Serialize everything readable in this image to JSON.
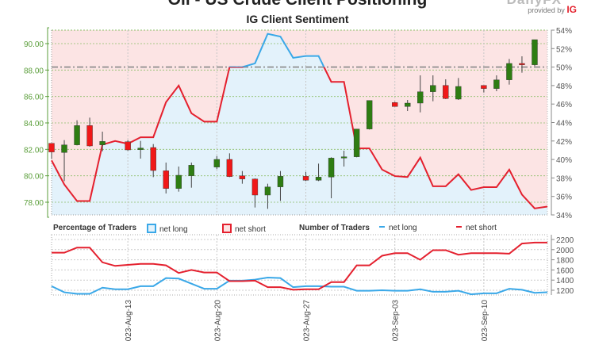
{
  "header": {
    "title": "Oil - US Crude Client Positioning",
    "subtitle": "IG Client Sentiment",
    "logo": "DailyFX",
    "provided_by": "provided by",
    "provider": "IG"
  },
  "legend": {
    "percentage_title": "Percentage of Traders",
    "pct_long": "net long",
    "pct_short": "net short",
    "number_title": "Number of Traders",
    "num_long": "net long",
    "num_short": "net short"
  },
  "colors": {
    "long": "#3aa8e8",
    "short": "#e4202e",
    "bull": "#2e7d12",
    "bear": "#f01818",
    "price_axis": "#5a9e3a",
    "bg_short": "#fce4e4",
    "bg_long": "#e3f2fb"
  },
  "chart_data": [
    {
      "type": "line",
      "title": "IG Client Sentiment",
      "dates": [
        "2023-08-07",
        "2023-08-08",
        "2023-08-09",
        "2023-08-10",
        "2023-08-11",
        "2023-08-12",
        "2023-08-13",
        "2023-08-14",
        "2023-08-15",
        "2023-08-16",
        "2023-08-17",
        "2023-08-18",
        "2023-08-19",
        "2023-08-20",
        "2023-08-21",
        "2023-08-22",
        "2023-08-23",
        "2023-08-24",
        "2023-08-25",
        "2023-08-26",
        "2023-08-27",
        "2023-08-28",
        "2023-08-29",
        "2023-08-30",
        "2023-08-31",
        "2023-09-01",
        "2023-09-02",
        "2023-09-03",
        "2023-09-04",
        "2023-09-05",
        "2023-09-06",
        "2023-09-07",
        "2023-09-08",
        "2023-09-09",
        "2023-09-10",
        "2023-09-11",
        "2023-09-12",
        "2023-09-13",
        "2023-09-14",
        "2023-09-15"
      ],
      "net_long_pct": [
        39.9,
        37.3,
        35.5,
        35.5,
        41.6,
        42.0,
        41.7,
        42.4,
        42.4,
        46.2,
        48.0,
        45.0,
        44.1,
        44.1,
        50.0,
        50.0,
        50.4,
        53.6,
        53.3,
        51.0,
        51.2,
        51.2,
        48.4,
        48.4,
        41.2,
        41.2,
        38.9,
        38.2,
        38.1,
        40.2,
        37.1,
        37.1,
        38.4,
        36.7,
        37.0,
        37.0,
        38.9,
        36.2,
        34.7,
        34.9
      ],
      "reference_pct": 50,
      "pct_axis": {
        "min": 34,
        "max": 54,
        "ticks": [
          34,
          36,
          38,
          40,
          42,
          44,
          46,
          48,
          50,
          52,
          54
        ],
        "suffix": "%"
      },
      "price_axis": {
        "ticks": [
          "78.00",
          "80.00",
          "82.00",
          "84.00",
          "86.00",
          "88.00",
          "90.00"
        ]
      },
      "candles": [
        {
          "date": "2023-08-07",
          "o": 82.46,
          "h": 82.46,
          "l": 81.3,
          "c": 81.8
        },
        {
          "date": "2023-08-08",
          "o": 81.76,
          "h": 82.7,
          "l": 79.6,
          "c": 82.34
        },
        {
          "date": "2023-08-09",
          "o": 82.34,
          "h": 84.2,
          "l": 82.3,
          "c": 83.8
        },
        {
          "date": "2023-08-10",
          "o": 83.8,
          "h": 84.4,
          "l": 82.2,
          "c": 82.26
        },
        {
          "date": "2023-08-11",
          "o": 82.34,
          "h": 83.34,
          "l": 81.86,
          "c": 82.6
        },
        {
          "date": "2023-08-13",
          "o": 82.58,
          "h": 82.7,
          "l": 81.9,
          "c": 81.96
        },
        {
          "date": "2023-08-14",
          "o": 81.98,
          "h": 82.64,
          "l": 81.3,
          "c": 82.1
        },
        {
          "date": "2023-08-15",
          "o": 82.14,
          "h": 82.4,
          "l": 79.9,
          "c": 80.4
        },
        {
          "date": "2023-08-16",
          "o": 80.38,
          "h": 81.0,
          "l": 78.66,
          "c": 79.04
        },
        {
          "date": "2023-08-17",
          "o": 79.04,
          "h": 80.7,
          "l": 78.8,
          "c": 80.04
        },
        {
          "date": "2023-08-18",
          "o": 80.0,
          "h": 81.0,
          "l": 79.1,
          "c": 80.8
        },
        {
          "date": "2023-08-20",
          "o": 80.66,
          "h": 81.5,
          "l": 80.5,
          "c": 81.24
        },
        {
          "date": "2023-08-21",
          "o": 81.24,
          "h": 81.7,
          "l": 79.9,
          "c": 79.94
        },
        {
          "date": "2023-08-22",
          "o": 80.0,
          "h": 80.36,
          "l": 79.4,
          "c": 79.76
        },
        {
          "date": "2023-08-23",
          "o": 79.76,
          "h": 79.8,
          "l": 77.6,
          "c": 78.54
        },
        {
          "date": "2023-08-24",
          "o": 78.54,
          "h": 79.4,
          "l": 77.5,
          "c": 79.16
        },
        {
          "date": "2023-08-25",
          "o": 79.16,
          "h": 80.36,
          "l": 78.1,
          "c": 79.96
        },
        {
          "date": "2023-08-27",
          "o": 79.96,
          "h": 80.3,
          "l": 79.6,
          "c": 79.66
        },
        {
          "date": "2023-08-28",
          "o": 79.66,
          "h": 80.92,
          "l": 79.6,
          "c": 79.9
        },
        {
          "date": "2023-08-29",
          "o": 79.9,
          "h": 81.4,
          "l": 78.3,
          "c": 81.34
        },
        {
          "date": "2023-08-30",
          "o": 81.34,
          "h": 81.9,
          "l": 80.7,
          "c": 81.44
        },
        {
          "date": "2023-08-31",
          "o": 81.44,
          "h": 83.54,
          "l": 81.4,
          "c": 83.54
        },
        {
          "date": "2023-09-01",
          "o": 83.54,
          "h": 85.7,
          "l": 83.5,
          "c": 85.7
        },
        {
          "date": "2023-09-03",
          "o": 85.54,
          "h": 85.6,
          "l": 85.24,
          "c": 85.24
        },
        {
          "date": "2023-09-04",
          "o": 85.24,
          "h": 85.74,
          "l": 84.9,
          "c": 85.5
        },
        {
          "date": "2023-09-05",
          "o": 85.5,
          "h": 87.6,
          "l": 84.8,
          "c": 86.36
        },
        {
          "date": "2023-09-06",
          "o": 86.36,
          "h": 87.6,
          "l": 85.64,
          "c": 86.84
        },
        {
          "date": "2023-09-07",
          "o": 86.84,
          "h": 87.3,
          "l": 85.8,
          "c": 85.84
        },
        {
          "date": "2023-09-08",
          "o": 85.8,
          "h": 87.4,
          "l": 85.74,
          "c": 86.76
        },
        {
          "date": "2023-09-10",
          "o": 86.84,
          "h": 86.84,
          "l": 86.3,
          "c": 86.6
        },
        {
          "date": "2023-09-11",
          "o": 86.6,
          "h": 87.6,
          "l": 86.4,
          "c": 87.26
        },
        {
          "date": "2023-09-12",
          "o": 87.26,
          "h": 88.84,
          "l": 86.9,
          "c": 88.5
        },
        {
          "date": "2023-09-13",
          "o": 88.5,
          "h": 89.04,
          "l": 87.8,
          "c": 88.4
        },
        {
          "date": "2023-09-14",
          "o": 88.4,
          "h": 90.3,
          "l": 88.3,
          "c": 90.3
        }
      ]
    },
    {
      "type": "line",
      "title": "Number of Traders",
      "y_axis": {
        "ticks": [
          1200,
          1400,
          1600,
          1800,
          2000,
          2200
        ]
      },
      "x_tick_labels": [
        "2023-Aug-13",
        "2023-Aug-20",
        "2023-Aug-27",
        "2023-Sep-03",
        "2023-Sep-10"
      ],
      "x_tick_dates": [
        "2023-08-13",
        "2023-08-20",
        "2023-08-27",
        "2023-09-03",
        "2023-09-10"
      ],
      "series": [
        {
          "name": "net long",
          "values": [
            1280,
            1160,
            1130,
            1130,
            1250,
            1220,
            1220,
            1280,
            1280,
            1440,
            1430,
            1330,
            1230,
            1230,
            1390,
            1390,
            1410,
            1450,
            1440,
            1260,
            1280,
            1280,
            1270,
            1270,
            1190,
            1190,
            1200,
            1190,
            1190,
            1220,
            1170,
            1170,
            1190,
            1120,
            1140,
            1140,
            1230,
            1210,
            1150,
            1160
          ]
        },
        {
          "name": "net short",
          "values": [
            1940,
            1940,
            2040,
            2040,
            1750,
            1680,
            1700,
            1720,
            1720,
            1690,
            1540,
            1600,
            1550,
            1550,
            1380,
            1380,
            1390,
            1260,
            1260,
            1210,
            1220,
            1220,
            1360,
            1360,
            1690,
            1690,
            1880,
            1930,
            1930,
            1800,
            1990,
            1990,
            1900,
            1930,
            1930,
            1930,
            1920,
            2120,
            2140,
            2140
          ]
        }
      ]
    }
  ]
}
